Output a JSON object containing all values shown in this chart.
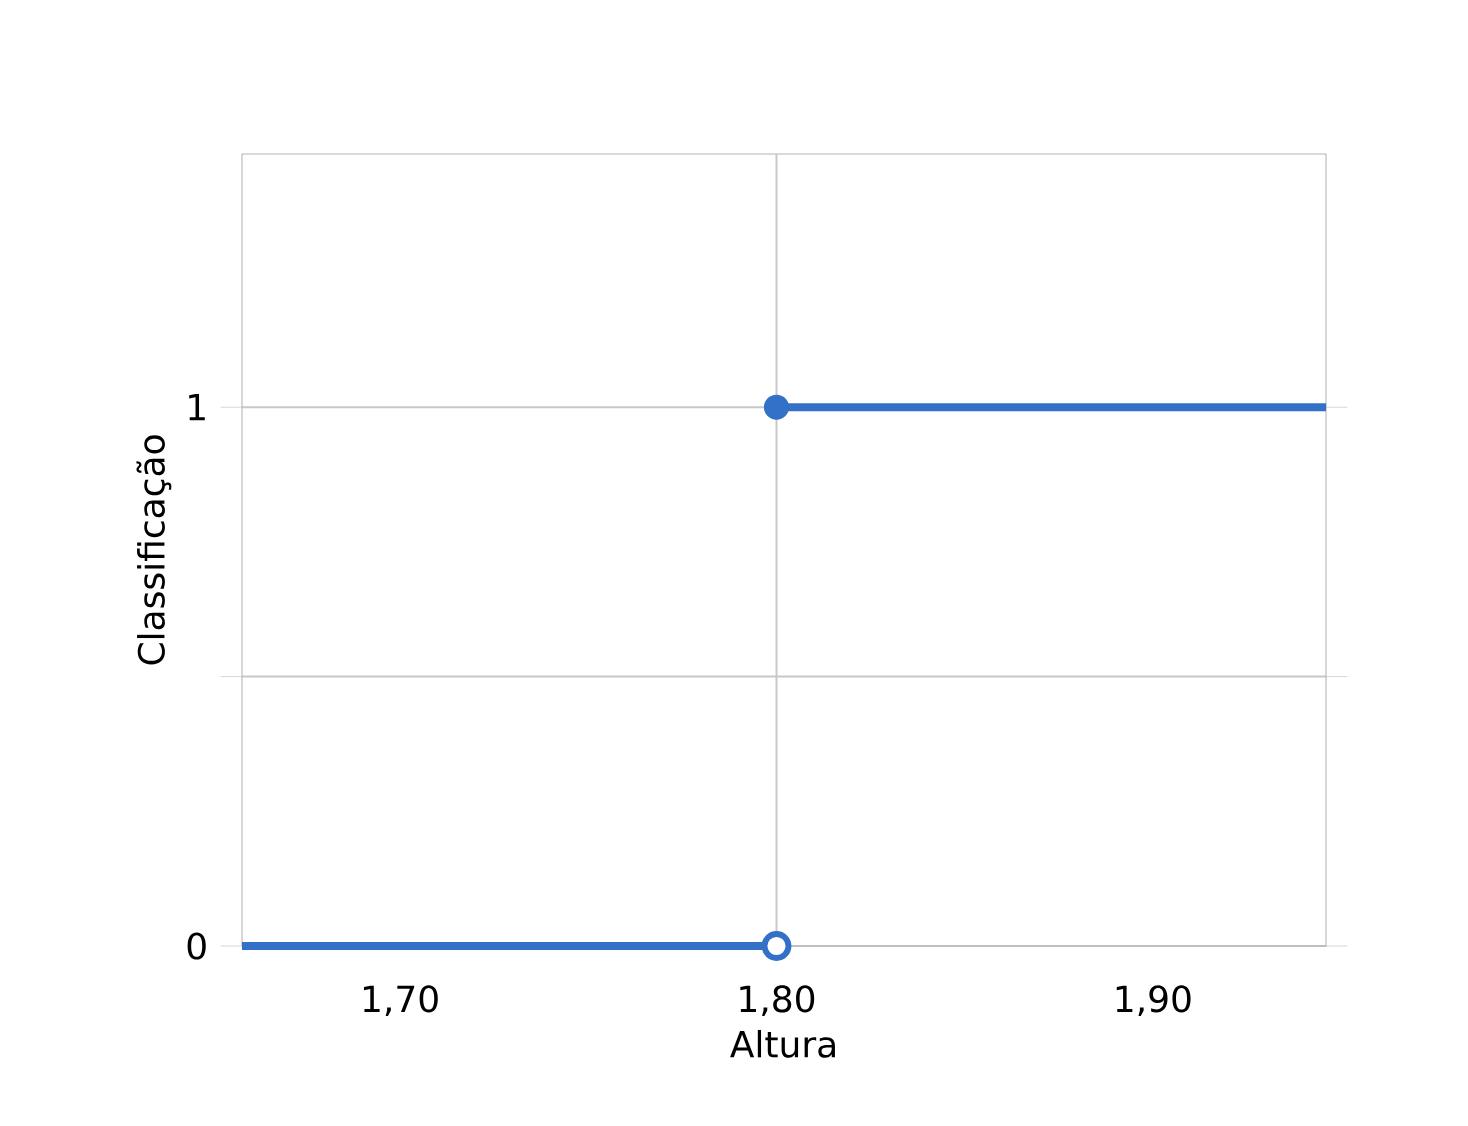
{
  "chart_data": {
    "type": "line",
    "xlabel": "Altura",
    "ylabel": "Classificação",
    "xlim": [
      1.658,
      1.946
    ],
    "ylim": [
      0,
      1.47
    ],
    "xticks": [
      {
        "value": 1.7,
        "label": "1,70"
      },
      {
        "value": 1.8,
        "label": "1,80"
      },
      {
        "value": 1.9,
        "label": "1,90"
      }
    ],
    "yticks": [
      0,
      {
        "value": 0.5,
        "label": null
      },
      1
    ],
    "grid": "y",
    "ref_lines": [
      {
        "axis": "x",
        "value": 1.8,
        "color": "#c8c8c8"
      }
    ],
    "series": [
      {
        "color": "#3370c8",
        "x": [
          1.658,
          1.8
        ],
        "values": [
          0,
          0
        ]
      },
      {
        "color": "#3370c8",
        "x": [
          1.8,
          1.946
        ],
        "values": [
          1,
          1
        ]
      },
      {
        "type": "scatter",
        "color": "#3370c8",
        "marker": "circle",
        "x": [
          1.8
        ],
        "values": [
          1
        ]
      },
      {
        "type": "scatter",
        "color": "#3370c8",
        "x": [
          1.8
        ],
        "values": [
          0
        ]
      }
    ]
  }
}
